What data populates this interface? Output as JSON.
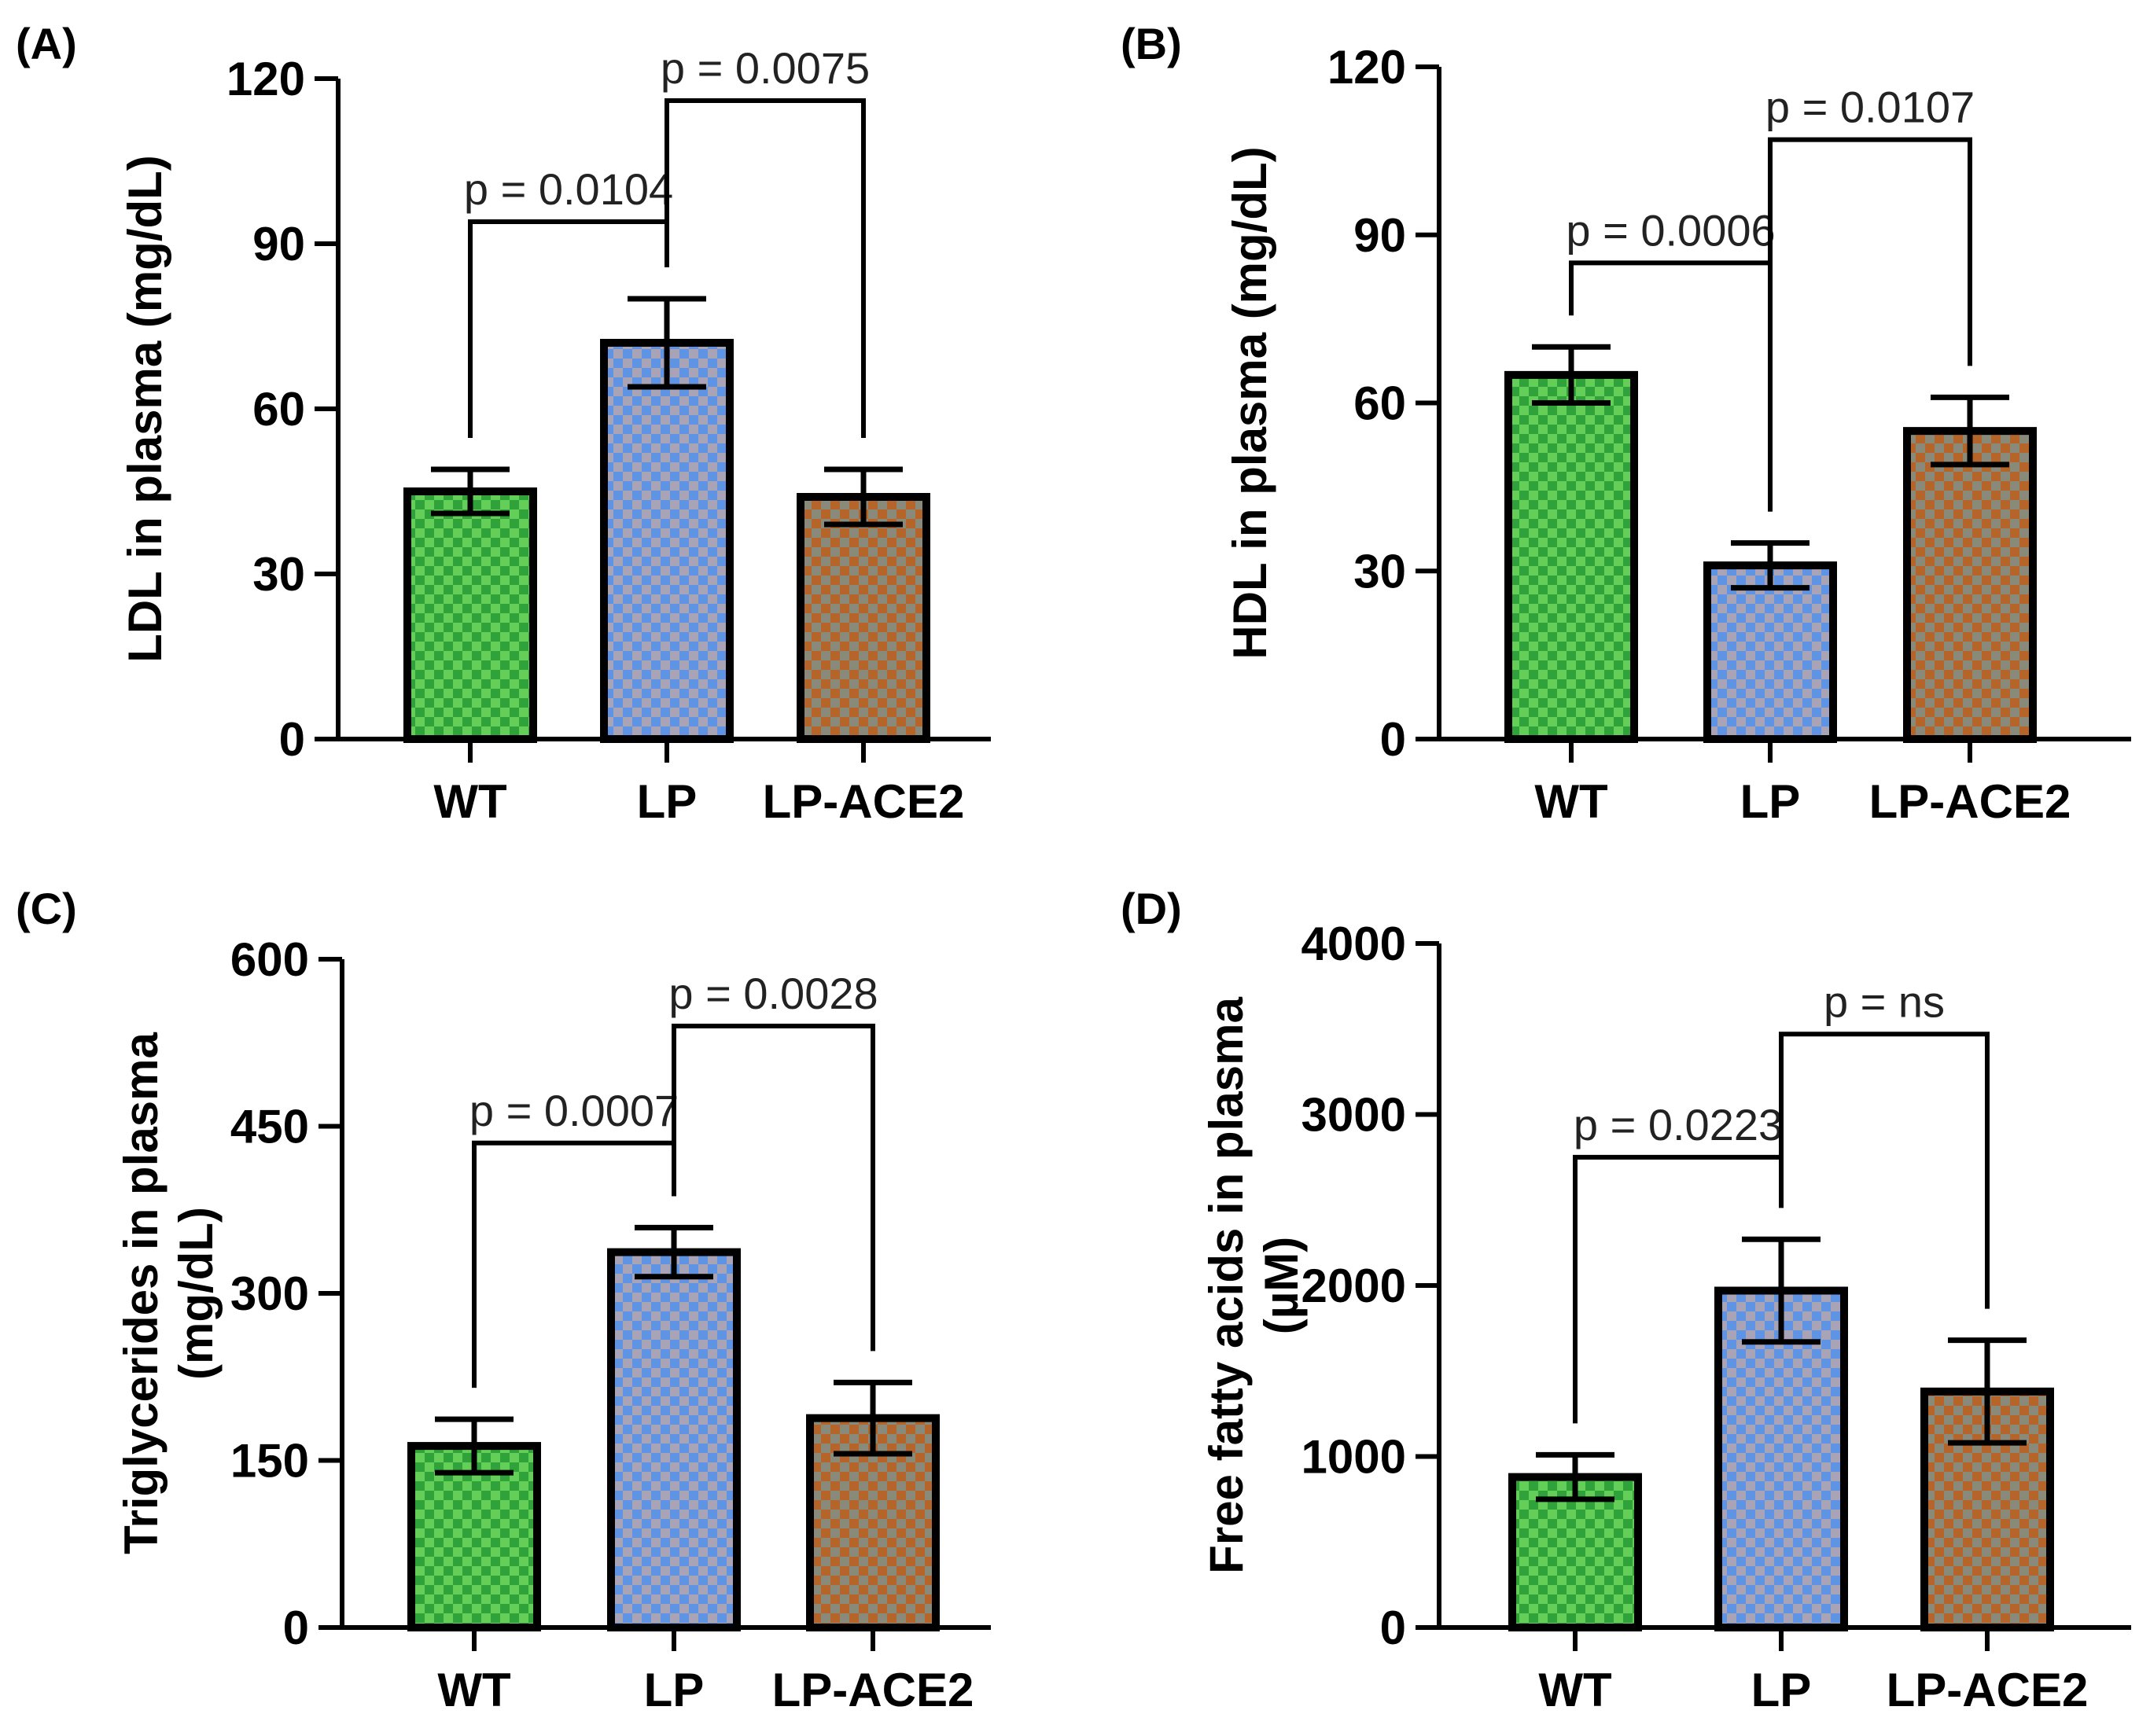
{
  "chart_data": [
    {
      "type": "bar",
      "panel": "(A)",
      "categories": [
        "WT",
        "LP",
        "LP-ACE2"
      ],
      "values": [
        45,
        72,
        44
      ],
      "errors": [
        4,
        8,
        5
      ],
      "ylabel": "LDL in plasma (mg/dL)",
      "ylim": [
        0,
        120
      ],
      "yticks": [
        0,
        30,
        60,
        90,
        120
      ],
      "comparisons": [
        {
          "from": 0,
          "to": 1,
          "label": "p = 0.0104",
          "level": 94
        },
        {
          "from": 1,
          "to": 2,
          "label": "p = 0.0075",
          "level": 116
        }
      ]
    },
    {
      "type": "bar",
      "panel": "(B)",
      "categories": [
        "WT",
        "LP",
        "LP-ACE2"
      ],
      "values": [
        65,
        31,
        55
      ],
      "errors": [
        5,
        4,
        6
      ],
      "ylabel": "HDL in plasma (mg/dL)",
      "ylim": [
        0,
        120
      ],
      "yticks": [
        0,
        30,
        60,
        90,
        120
      ],
      "comparisons": [
        {
          "from": 0,
          "to": 1,
          "label": "p = 0.0006",
          "level": 85
        },
        {
          "from": 1,
          "to": 2,
          "label": "p = 0.0107",
          "level": 107
        }
      ]
    },
    {
      "type": "bar",
      "panel": "(C)",
      "categories": [
        "WT",
        "LP",
        "LP-ACE2"
      ],
      "values": [
        163,
        337,
        188
      ],
      "errors": [
        24,
        22,
        32
      ],
      "ylabel": "Triglycerides in plasma",
      "ylabel2": "(mg/dL)",
      "ylim": [
        0,
        600
      ],
      "yticks": [
        0,
        150,
        300,
        450,
        600
      ],
      "comparisons": [
        {
          "from": 0,
          "to": 1,
          "label": "p = 0.0007",
          "level": 435
        },
        {
          "from": 1,
          "to": 2,
          "label": "p = 0.0028",
          "level": 540
        }
      ]
    },
    {
      "type": "bar",
      "panel": "(D)",
      "categories": [
        "WT",
        "LP",
        "LP-ACE2"
      ],
      "values": [
        880,
        1970,
        1380
      ],
      "errors": [
        130,
        300,
        300
      ],
      "ylabel": "Free fatty acids in plasma",
      "ylabel2": "(µM)",
      "ylim": [
        0,
        4000
      ],
      "yticks": [
        0,
        1000,
        2000,
        3000,
        4000
      ],
      "comparisons": [
        {
          "from": 0,
          "to": 1,
          "label": "p = 0.0223",
          "level": 2750
        },
        {
          "from": 1,
          "to": 2,
          "label": "p = ns",
          "level": 3470
        }
      ]
    }
  ],
  "colors": {
    "wt": "#2fa33a",
    "wt_check": "#64cf58",
    "lp": "#5f93e3",
    "lp_check": "#a9a3b8",
    "ace2": "#b5652a",
    "ace2_check": "#8a8a7a"
  }
}
